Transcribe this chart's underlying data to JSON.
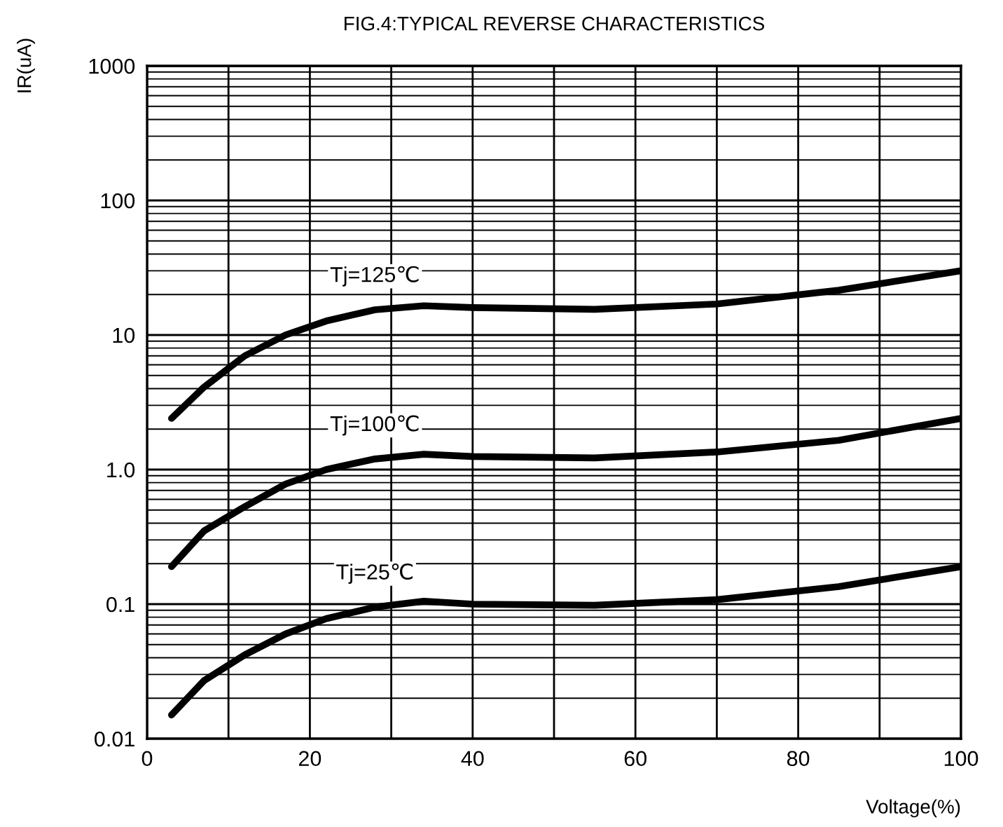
{
  "chart_data": {
    "type": "line",
    "title": "FIG.4:TYPICAL REVERSE CHARACTERISTICS",
    "xlabel": "Voltage(%)",
    "ylabel": "IR(uA)",
    "log": "y",
    "grid": true,
    "legend": false,
    "marker": "none",
    "line_style": "solid",
    "xlim": [
      0,
      100
    ],
    "ylim": [
      0.01,
      1000
    ],
    "xticks": [
      0,
      {
        "value": 10,
        "label": null
      },
      20,
      {
        "value": 30,
        "label": null
      },
      40,
      {
        "value": 50,
        "label": null
      },
      60,
      {
        "value": 70,
        "label": null
      },
      80,
      {
        "value": 90,
        "label": null
      },
      100
    ],
    "yticks": [
      0.01,
      0.1,
      {
        "value": 1,
        "label": "1.0"
      },
      10,
      100,
      1000
    ],
    "x": [
      3,
      7,
      12,
      17,
      22,
      28,
      34,
      40,
      55,
      70,
      85,
      100
    ],
    "series": [
      {
        "name": "Tj=125℃",
        "color": "#000000",
        "values": [
          2.4,
          4.1,
          7.0,
          10,
          12.7,
          15.4,
          16.5,
          16,
          15.5,
          17,
          21.5,
          30
        ]
      },
      {
        "name": "Tj=100℃",
        "color": "#000000",
        "values": [
          0.19,
          0.35,
          0.53,
          0.78,
          1.0,
          1.2,
          1.3,
          1.25,
          1.22,
          1.35,
          1.65,
          2.4
        ]
      },
      {
        "name": "Tj=25℃",
        "color": "#000000",
        "values": [
          0.015,
          0.027,
          0.042,
          0.06,
          0.078,
          0.095,
          0.105,
          0.1,
          0.098,
          0.108,
          0.135,
          0.19
        ]
      }
    ]
  }
}
